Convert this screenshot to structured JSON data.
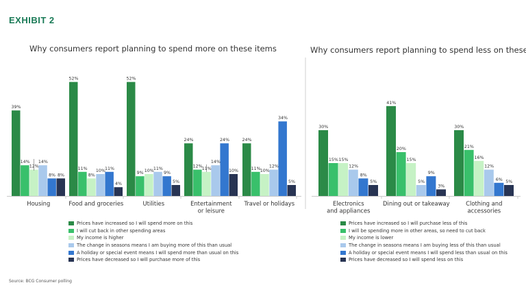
{
  "exhibit_label": "EXHIBIT 2",
  "source": "Source: BCG Consumer polling",
  "colors": [
    "#2b8a47",
    "#39c06b",
    "#c6f2c5",
    "#a9c9ec",
    "#3377cf",
    "#283453"
  ],
  "chart_data": [
    {
      "type": "bar",
      "title": "Why consumers report planning to spend more on these items",
      "categories": [
        "Housing",
        "Food and groceries",
        "Utilities",
        "Entertainment\nor leisure",
        "Travel or holidays"
      ],
      "ylim": [
        0,
        60
      ],
      "series": [
        {
          "name": "Prices have increased so I will spend more on this",
          "values": [
            39,
            52,
            52,
            24,
            24
          ]
        },
        {
          "name": "I will cut back in other spending areas",
          "values": [
            14,
            11,
            9,
            12,
            11
          ]
        },
        {
          "name": "My income is higher",
          "values": [
            12,
            8,
            10,
            11,
            10
          ]
        },
        {
          "name": "The change in seasons means I am buying more of this than usual",
          "values": [
            14,
            10,
            11,
            14,
            12
          ]
        },
        {
          "name": "A holiday or special event means I will spend more than usual on this",
          "values": [
            8,
            11,
            9,
            24,
            34
          ]
        },
        {
          "name": "Prices have decreased so I will purchase more of this",
          "values": [
            8,
            4,
            5,
            10,
            5
          ]
        }
      ],
      "value_suffix": "%"
    },
    {
      "type": "bar",
      "title": "Why consumers report planning to spend less on these items",
      "categories": [
        "Electronics\nand appliances",
        "Dining out or takeaway",
        "Clothing and\naccessories"
      ],
      "ylim": [
        0,
        60
      ],
      "series": [
        {
          "name": "Prices have increased so I will purchase less of this",
          "values": [
            30,
            41,
            30
          ]
        },
        {
          "name": "I will be spending more in other areas, so need to cut back",
          "values": [
            15,
            20,
            21
          ]
        },
        {
          "name": "My income is lower",
          "values": [
            15,
            15,
            16
          ]
        },
        {
          "name": "The change in seasons means I am buying less of this than usual",
          "values": [
            12,
            5,
            12
          ]
        },
        {
          "name": "A holiday or special event means I will spend less than usual on this",
          "values": [
            8,
            9,
            6
          ]
        },
        {
          "name": "Prices have decreased so I will spend less on this",
          "values": [
            5,
            3,
            5
          ]
        }
      ],
      "value_suffix": "%"
    }
  ]
}
